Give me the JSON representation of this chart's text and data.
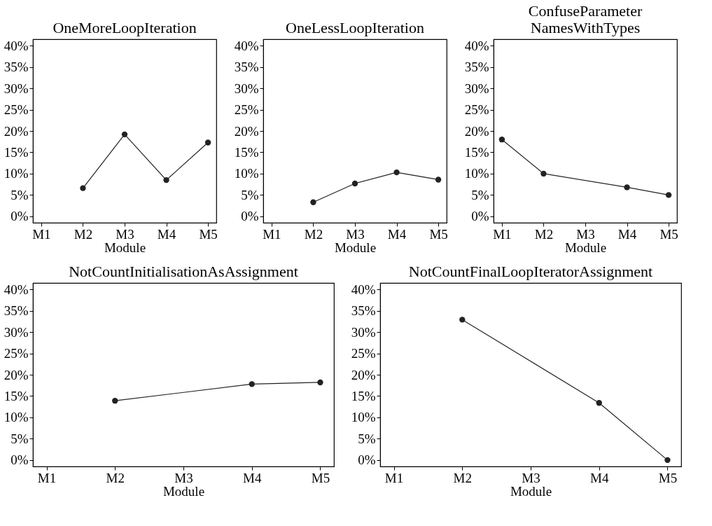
{
  "chart_data": [
    {
      "type": "line",
      "title": "OneMoreLoopIteration",
      "xlabel": "Module",
      "categories": [
        "M1",
        "M2",
        "M3",
        "M4",
        "M5"
      ],
      "series": [
        {
          "color": "#222222",
          "values": [
            null,
            6.6,
            19.2,
            8.5,
            17.3
          ]
        }
      ],
      "ylim": [
        -1.5,
        41.5
      ],
      "yticks": [
        {
          "value": 0,
          "label": "0%"
        },
        {
          "value": 5,
          "label": "5%"
        },
        {
          "value": 10,
          "label": "10%"
        },
        {
          "value": 15,
          "label": "15%"
        },
        {
          "value": 20,
          "label": "20%"
        },
        {
          "value": 25,
          "label": "25%"
        },
        {
          "value": 30,
          "label": "30%"
        },
        {
          "value": 35,
          "label": "35%"
        },
        {
          "value": 40,
          "label": "40%"
        }
      ],
      "marker": "circle",
      "grid": false
    },
    {
      "type": "line",
      "title": "OneLessLoopIteration",
      "xlabel": "Module",
      "categories": [
        "M1",
        "M2",
        "M3",
        "M4",
        "M5"
      ],
      "series": [
        {
          "color": "#222222",
          "values": [
            null,
            3.3,
            7.7,
            10.3,
            8.6
          ]
        }
      ],
      "ylim": [
        -1.5,
        41.5
      ],
      "yticks": [
        {
          "value": 0,
          "label": "0%"
        },
        {
          "value": 5,
          "label": "5%"
        },
        {
          "value": 10,
          "label": "10%"
        },
        {
          "value": 15,
          "label": "15%"
        },
        {
          "value": 20,
          "label": "20%"
        },
        {
          "value": 25,
          "label": "25%"
        },
        {
          "value": 30,
          "label": "30%"
        },
        {
          "value": 35,
          "label": "35%"
        },
        {
          "value": 40,
          "label": "40%"
        }
      ],
      "marker": "circle",
      "grid": false
    },
    {
      "type": "line",
      "title": "ConfuseParameter\nNamesWithTypes",
      "xlabel": "Module",
      "categories": [
        "M1",
        "M2",
        "M3",
        "M4",
        "M5"
      ],
      "series": [
        {
          "color": "#222222",
          "values": [
            18.0,
            10.0,
            null,
            6.8,
            5.0
          ]
        }
      ],
      "ylim": [
        -1.5,
        41.5
      ],
      "yticks": [
        {
          "value": 0,
          "label": "0%"
        },
        {
          "value": 5,
          "label": "5%"
        },
        {
          "value": 10,
          "label": "10%"
        },
        {
          "value": 15,
          "label": "15%"
        },
        {
          "value": 20,
          "label": "20%"
        },
        {
          "value": 25,
          "label": "25%"
        },
        {
          "value": 30,
          "label": "30%"
        },
        {
          "value": 35,
          "label": "35%"
        },
        {
          "value": 40,
          "label": "40%"
        }
      ],
      "marker": "circle",
      "grid": false
    },
    {
      "type": "line",
      "title": "NotCountInitialisationAsAssignment",
      "xlabel": "Module",
      "categories": [
        "M1",
        "M2",
        "M3",
        "M4",
        "M5"
      ],
      "series": [
        {
          "color": "#222222",
          "values": [
            null,
            13.9,
            null,
            17.8,
            18.2
          ]
        }
      ],
      "ylim": [
        -1.5,
        41.5
      ],
      "yticks": [
        {
          "value": 0,
          "label": "0%"
        },
        {
          "value": 5,
          "label": "5%"
        },
        {
          "value": 10,
          "label": "10%"
        },
        {
          "value": 15,
          "label": "15%"
        },
        {
          "value": 20,
          "label": "20%"
        },
        {
          "value": 25,
          "label": "25%"
        },
        {
          "value": 30,
          "label": "30%"
        },
        {
          "value": 35,
          "label": "35%"
        },
        {
          "value": 40,
          "label": "40%"
        }
      ],
      "marker": "circle",
      "grid": false
    },
    {
      "type": "line",
      "title": "NotCountFinalLoopIteratorAssignment",
      "xlabel": "Module",
      "categories": [
        "M1",
        "M2",
        "M3",
        "M4",
        "M5"
      ],
      "series": [
        {
          "color": "#222222",
          "values": [
            null,
            32.9,
            null,
            13.4,
            0
          ]
        }
      ],
      "ylim": [
        -1.5,
        41.5
      ],
      "yticks": [
        {
          "value": 0,
          "label": "0%"
        },
        {
          "value": 5,
          "label": "5%"
        },
        {
          "value": 10,
          "label": "10%"
        },
        {
          "value": 15,
          "label": "15%"
        },
        {
          "value": 20,
          "label": "20%"
        },
        {
          "value": 25,
          "label": "25%"
        },
        {
          "value": 30,
          "label": "30%"
        },
        {
          "value": 35,
          "label": "35%"
        },
        {
          "value": 40,
          "label": "40%"
        }
      ],
      "marker": "circle",
      "grid": false
    }
  ]
}
